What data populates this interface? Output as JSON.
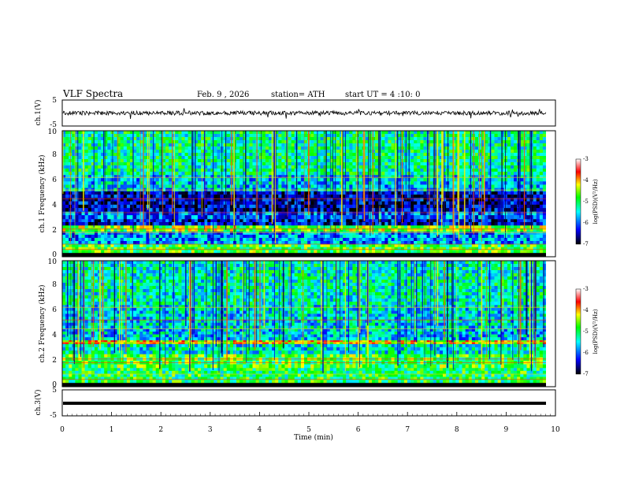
{
  "header": {
    "title": "VLF Spectra",
    "date": "Feb. 9 , 2026",
    "station": "station= ATH",
    "start": "start UT = 4 :10: 0"
  },
  "colors": {
    "colormap": [
      "#000000",
      "#0000ff",
      "#00ffff",
      "#00ff00",
      "#ffff00",
      "#ff0000",
      "#ffffff"
    ],
    "waveform": "#000000",
    "axes": "#000000"
  },
  "chart_data": [
    {
      "type": "line",
      "panel": "ch1-waveform",
      "ylabel": "ch.1(V)",
      "ylim": [
        -5,
        5
      ],
      "yticks": [
        "5",
        "-5"
      ],
      "xlim": [
        0,
        10
      ],
      "description_values": "noisy waveform around 0 V, amplitude roughly ±1 V with spikes up to ±2 V"
    },
    {
      "type": "heatmap",
      "panel": "ch1-spectrogram",
      "ylabel": "ch.1 Frequency (kHz)",
      "ylim": [
        0,
        10
      ],
      "yticks": [
        "0",
        "2",
        "4",
        "6",
        "8",
        "10"
      ],
      "xlim": [
        0,
        10
      ],
      "colorbar": {
        "label": "log(PSD)(V²/Hz)",
        "ticks": [
          "-3",
          "-4",
          "-5",
          "-6",
          "-7"
        ],
        "range": [
          -7,
          -3
        ]
      },
      "bands_khz": [
        {
          "f0": 0.0,
          "f1": 0.3,
          "level": -7
        },
        {
          "f0": 0.3,
          "f1": 1.0,
          "level": -4.8
        },
        {
          "f0": 1.0,
          "f1": 2.0,
          "level": -5.8
        },
        {
          "f0": 2.0,
          "f1": 2.5,
          "level": -4.6
        },
        {
          "f0": 2.5,
          "f1": 3.0,
          "level": -6.4
        },
        {
          "f0": 3.0,
          "f1": 3.6,
          "level": -6.0
        },
        {
          "f0": 3.6,
          "f1": 5.2,
          "level": -6.5
        },
        {
          "f0": 5.2,
          "f1": 6.5,
          "level": -5.6
        },
        {
          "f0": 6.5,
          "f1": 10.0,
          "level": -5.2
        }
      ]
    },
    {
      "type": "heatmap",
      "panel": "ch2-spectrogram",
      "ylabel": "ch.2 Frequency (kHz)",
      "ylim": [
        0,
        10
      ],
      "yticks": [
        "0",
        "2",
        "4",
        "6",
        "8",
        "10"
      ],
      "xlim": [
        0,
        10
      ],
      "colorbar": {
        "label": "log(PSD)(V²/Hz)",
        "ticks": [
          "-3",
          "-4",
          "-5",
          "-6",
          "-7"
        ],
        "range": [
          -7,
          -3
        ]
      },
      "bands_khz": [
        {
          "f0": 0.0,
          "f1": 0.3,
          "level": -7
        },
        {
          "f0": 0.3,
          "f1": 1.5,
          "level": -5.0
        },
        {
          "f0": 1.5,
          "f1": 2.6,
          "level": -4.8
        },
        {
          "f0": 2.6,
          "f1": 3.4,
          "level": -5.4
        },
        {
          "f0": 3.4,
          "f1": 3.7,
          "level": -4.2
        },
        {
          "f0": 3.7,
          "f1": 4.6,
          "level": -5.6
        },
        {
          "f0": 4.6,
          "f1": 6.5,
          "level": -5.5
        },
        {
          "f0": 6.5,
          "f1": 10.0,
          "level": -5.3
        }
      ]
    },
    {
      "type": "line",
      "panel": "ch3-waveform",
      "ylabel": "ch.3(V)",
      "ylim": [
        -5,
        5
      ],
      "yticks": [
        "5",
        "-5"
      ],
      "xlim": [
        0,
        10
      ],
      "xlabel": "Time (min)",
      "xticks": [
        "0",
        "1",
        "2",
        "3",
        "4",
        "5",
        "6",
        "7",
        "8",
        "9",
        "10"
      ],
      "constant_value": 0
    }
  ]
}
